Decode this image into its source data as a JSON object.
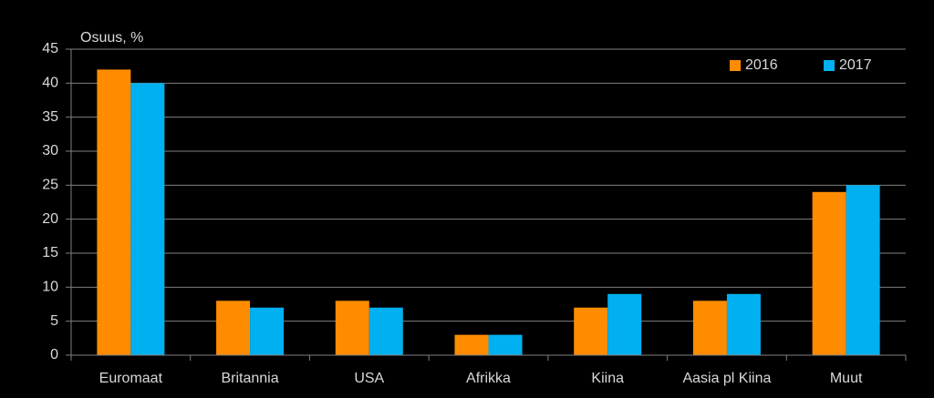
{
  "chart_data": {
    "type": "bar",
    "y_label": "Osuus, %",
    "categories": [
      "Euromaat",
      "Britannia",
      "USA",
      "Afrikka",
      "Kiina",
      "Aasia pl Kiina",
      "Muut"
    ],
    "series": [
      {
        "name": "2016",
        "color": "#ff8c00",
        "values": [
          42,
          8,
          8,
          3,
          7,
          8,
          24
        ]
      },
      {
        "name": "2017",
        "color": "#00b0f0",
        "values": [
          40,
          7,
          7,
          3,
          9,
          9,
          25
        ]
      }
    ],
    "ylim": [
      0,
      45
    ],
    "yticks": [
      0,
      5,
      10,
      15,
      20,
      25,
      30,
      35,
      40,
      45
    ],
    "grid": true,
    "legend": "top-right"
  }
}
